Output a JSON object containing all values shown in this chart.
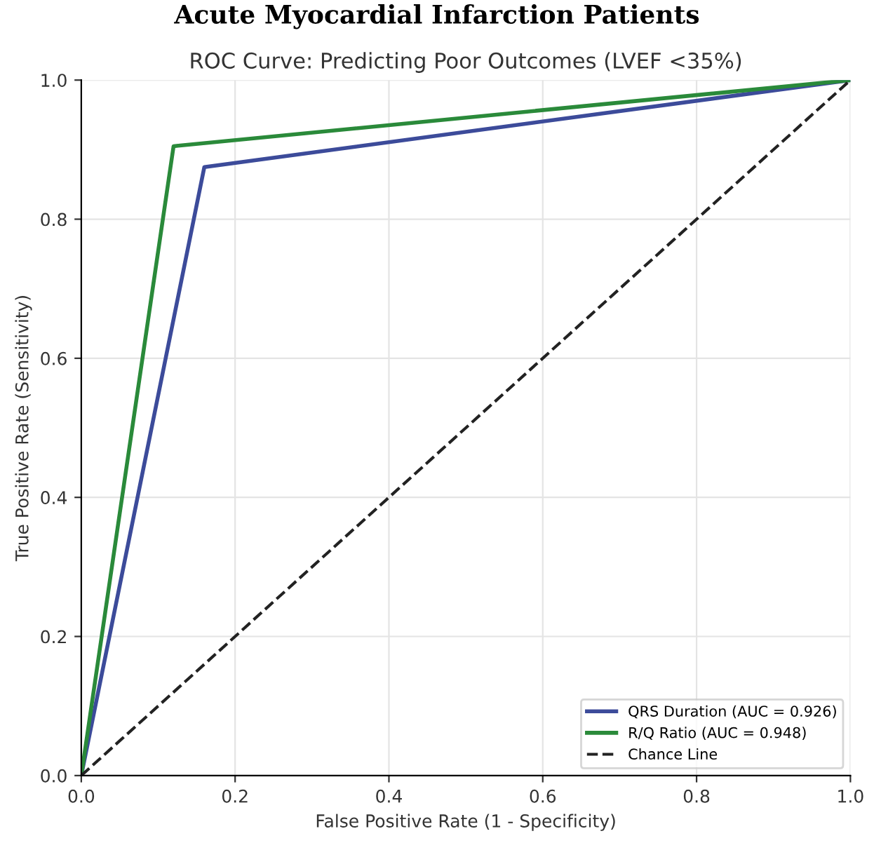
{
  "chart_data": {
    "type": "line",
    "title": "Acute Myocardial Infarction Patients",
    "subtitle": "ROC Curve: Predicting Poor Outcomes (LVEF <35%)",
    "xlabel": "False Positive Rate (1 - Specificity)",
    "ylabel": "True Positive Rate (Sensitivity)",
    "series": [
      {
        "name": "QRS Duration (AUC = 0.926)",
        "color": "#3c4b9a",
        "x": [
          0,
          0.16,
          1
        ],
        "values": [
          0,
          0.875,
          1
        ]
      },
      {
        "name": "R/Q Ratio (AUC = 0.948)",
        "color": "#2a8a3a",
        "x": [
          0,
          0.12,
          1
        ],
        "values": [
          0,
          0.905,
          1
        ]
      },
      {
        "name": "Chance Line",
        "color": "#222222",
        "x": [
          0,
          1
        ],
        "values": [
          0,
          1
        ],
        "line_style": "dashed"
      }
    ],
    "xlim": [
      0,
      1
    ],
    "ylim": [
      0,
      1
    ],
    "xticks": [
      {
        "value": 0,
        "label": "0.0"
      },
      0.2,
      0.4,
      0.6,
      0.8,
      {
        "value": 1,
        "label": "1.0"
      }
    ],
    "yticks": [
      {
        "value": 0,
        "label": "0.0"
      },
      0.2,
      0.4,
      0.6,
      0.8,
      {
        "value": 1,
        "label": "1.0"
      }
    ],
    "grid": true,
    "legend": "bottom right"
  }
}
